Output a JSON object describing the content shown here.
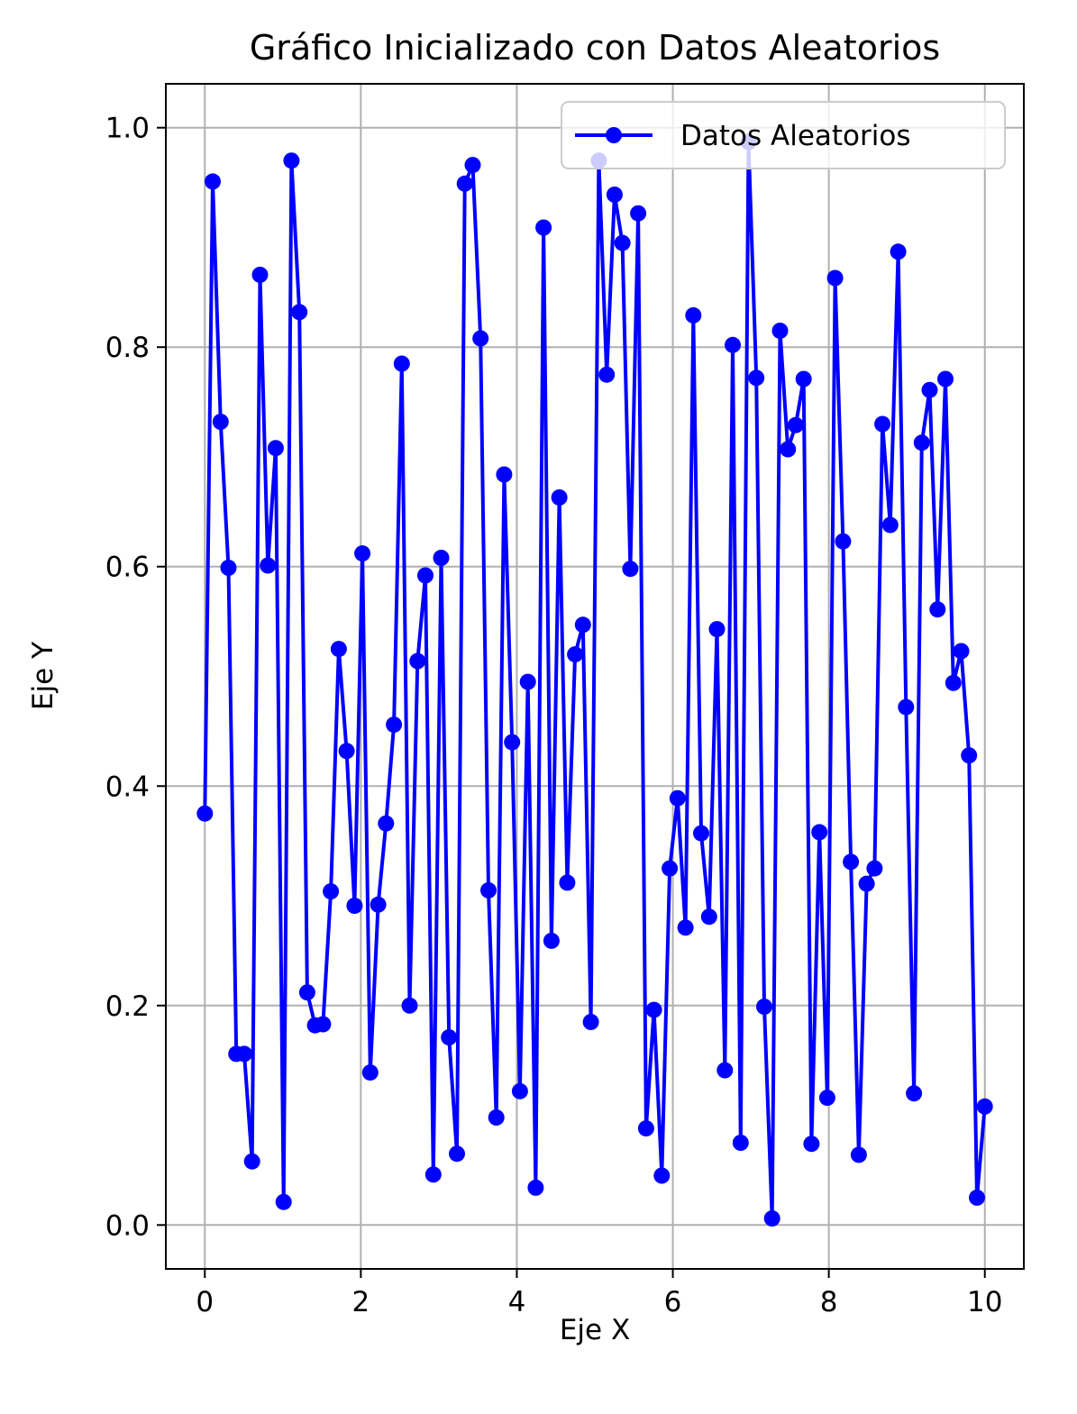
{
  "chart_data": {
    "type": "line",
    "title": "Gráfico Inicializado con Datos Aleatorios",
    "xlabel": "Eje X",
    "ylabel": "Eje Y",
    "xlim": [
      -0.5,
      10.5
    ],
    "ylim": [
      -0.04,
      1.04
    ],
    "xticks": [
      0,
      2,
      4,
      6,
      8,
      10
    ],
    "xtick_labels": [
      "0",
      "2",
      "4",
      "6",
      "8",
      "10"
    ],
    "yticks": [
      0.0,
      0.2,
      0.4,
      0.6,
      0.8,
      1.0
    ],
    "ytick_labels": [
      "0.0",
      "0.2",
      "0.4",
      "0.6",
      "0.8",
      "1.0"
    ],
    "grid": true,
    "legend_position": "top-right",
    "series": [
      {
        "name": "Datos Aleatorios",
        "color": "#0000ff",
        "marker": "circle",
        "x": [
          0.0,
          0.101,
          0.202,
          0.303,
          0.404,
          0.505,
          0.606,
          0.707,
          0.808,
          0.909,
          1.01,
          1.111,
          1.212,
          1.313,
          1.414,
          1.515,
          1.616,
          1.717,
          1.818,
          1.919,
          2.02,
          2.121,
          2.222,
          2.323,
          2.424,
          2.525,
          2.626,
          2.727,
          2.828,
          2.929,
          3.03,
          3.131,
          3.232,
          3.333,
          3.434,
          3.535,
          3.636,
          3.737,
          3.838,
          3.939,
          4.04,
          4.141,
          4.242,
          4.343,
          4.444,
          4.545,
          4.646,
          4.747,
          4.848,
          4.949,
          5.051,
          5.152,
          5.253,
          5.354,
          5.455,
          5.556,
          5.657,
          5.758,
          5.859,
          5.96,
          6.061,
          6.162,
          6.263,
          6.364,
          6.465,
          6.566,
          6.667,
          6.768,
          6.869,
          6.97,
          7.071,
          7.172,
          7.273,
          7.374,
          7.475,
          7.576,
          7.677,
          7.778,
          7.879,
          7.98,
          8.081,
          8.182,
          8.283,
          8.384,
          8.485,
          8.586,
          8.687,
          8.788,
          8.889,
          8.99,
          9.091,
          9.192,
          9.293,
          9.394,
          9.495,
          9.596,
          9.697,
          9.798,
          9.899,
          10.0
        ],
        "y": [
          0.375,
          0.951,
          0.732,
          0.599,
          0.156,
          0.156,
          0.058,
          0.866,
          0.601,
          0.708,
          0.021,
          0.97,
          0.832,
          0.212,
          0.182,
          0.183,
          0.304,
          0.525,
          0.432,
          0.291,
          0.612,
          0.139,
          0.292,
          0.366,
          0.456,
          0.785,
          0.2,
          0.514,
          0.592,
          0.046,
          0.608,
          0.171,
          0.065,
          0.949,
          0.966,
          0.808,
          0.305,
          0.098,
          0.684,
          0.44,
          0.122,
          0.495,
          0.034,
          0.909,
          0.259,
          0.663,
          0.312,
          0.52,
          0.547,
          0.185,
          0.97,
          0.775,
          0.939,
          0.895,
          0.598,
          0.922,
          0.088,
          0.196,
          0.045,
          0.325,
          0.389,
          0.271,
          0.829,
          0.357,
          0.281,
          0.543,
          0.141,
          0.802,
          0.075,
          0.987,
          0.772,
          0.199,
          0.006,
          0.815,
          0.707,
          0.729,
          0.771,
          0.074,
          0.358,
          0.116,
          0.863,
          0.623,
          0.331,
          0.064,
          0.311,
          0.325,
          0.73,
          0.638,
          0.887,
          0.472,
          0.12,
          0.713,
          0.761,
          0.561,
          0.771,
          0.494,
          0.523,
          0.428,
          0.025,
          0.108
        ]
      }
    ]
  }
}
